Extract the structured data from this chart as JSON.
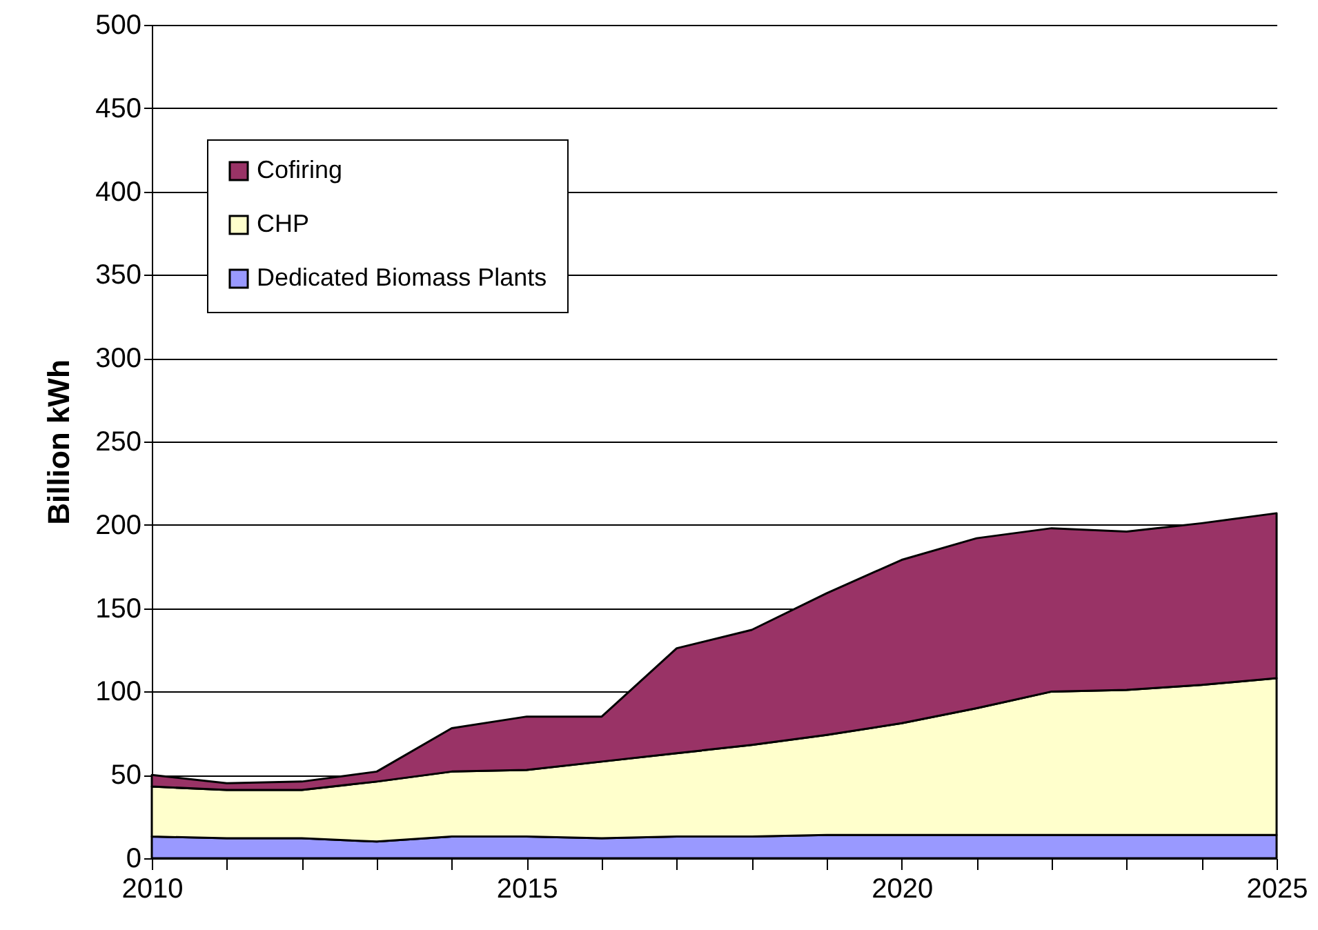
{
  "chart_data": {
    "type": "area",
    "stacked": true,
    "ylabel": "Billion kWh",
    "x": [
      2010,
      2011,
      2012,
      2013,
      2014,
      2015,
      2016,
      2017,
      2018,
      2019,
      2020,
      2021,
      2022,
      2023,
      2024,
      2025
    ],
    "series": [
      {
        "name": "Dedicated Biomass Plants",
        "color": "#9999ff",
        "values": [
          13,
          12,
          12,
          10,
          13,
          13,
          12,
          13,
          13,
          14,
          14,
          14,
          14,
          14,
          14,
          14
        ]
      },
      {
        "name": "CHP",
        "color": "#ffffcc",
        "values": [
          30,
          29,
          29,
          36,
          39,
          40,
          46,
          50,
          55,
          60,
          67,
          76,
          86,
          87,
          90,
          94
        ]
      },
      {
        "name": "Cofiring",
        "color": "#993366",
        "values": [
          7,
          4,
          5,
          6,
          26,
          32,
          27,
          63,
          69,
          85,
          98,
          102,
          98,
          95,
          97,
          99
        ]
      }
    ],
    "xlim": [
      2010,
      2025
    ],
    "xticks": [
      2010,
      {
        "value": 2011,
        "label": null
      },
      {
        "value": 2012,
        "label": null
      },
      {
        "value": 2013,
        "label": null
      },
      {
        "value": 2014,
        "label": null
      },
      2015,
      {
        "value": 2016,
        "label": null
      },
      {
        "value": 2017,
        "label": null
      },
      {
        "value": 2018,
        "label": null
      },
      {
        "value": 2019,
        "label": null
      },
      2020,
      {
        "value": 2021,
        "label": null
      },
      {
        "value": 2022,
        "label": null
      },
      {
        "value": 2023,
        "label": null
      },
      {
        "value": 2024,
        "label": null
      },
      2025
    ],
    "ylim": [
      0,
      500
    ],
    "yticks": [
      0,
      50,
      100,
      150,
      200,
      250,
      300,
      350,
      400,
      450,
      500
    ],
    "grid": "y",
    "legend": "top left"
  }
}
